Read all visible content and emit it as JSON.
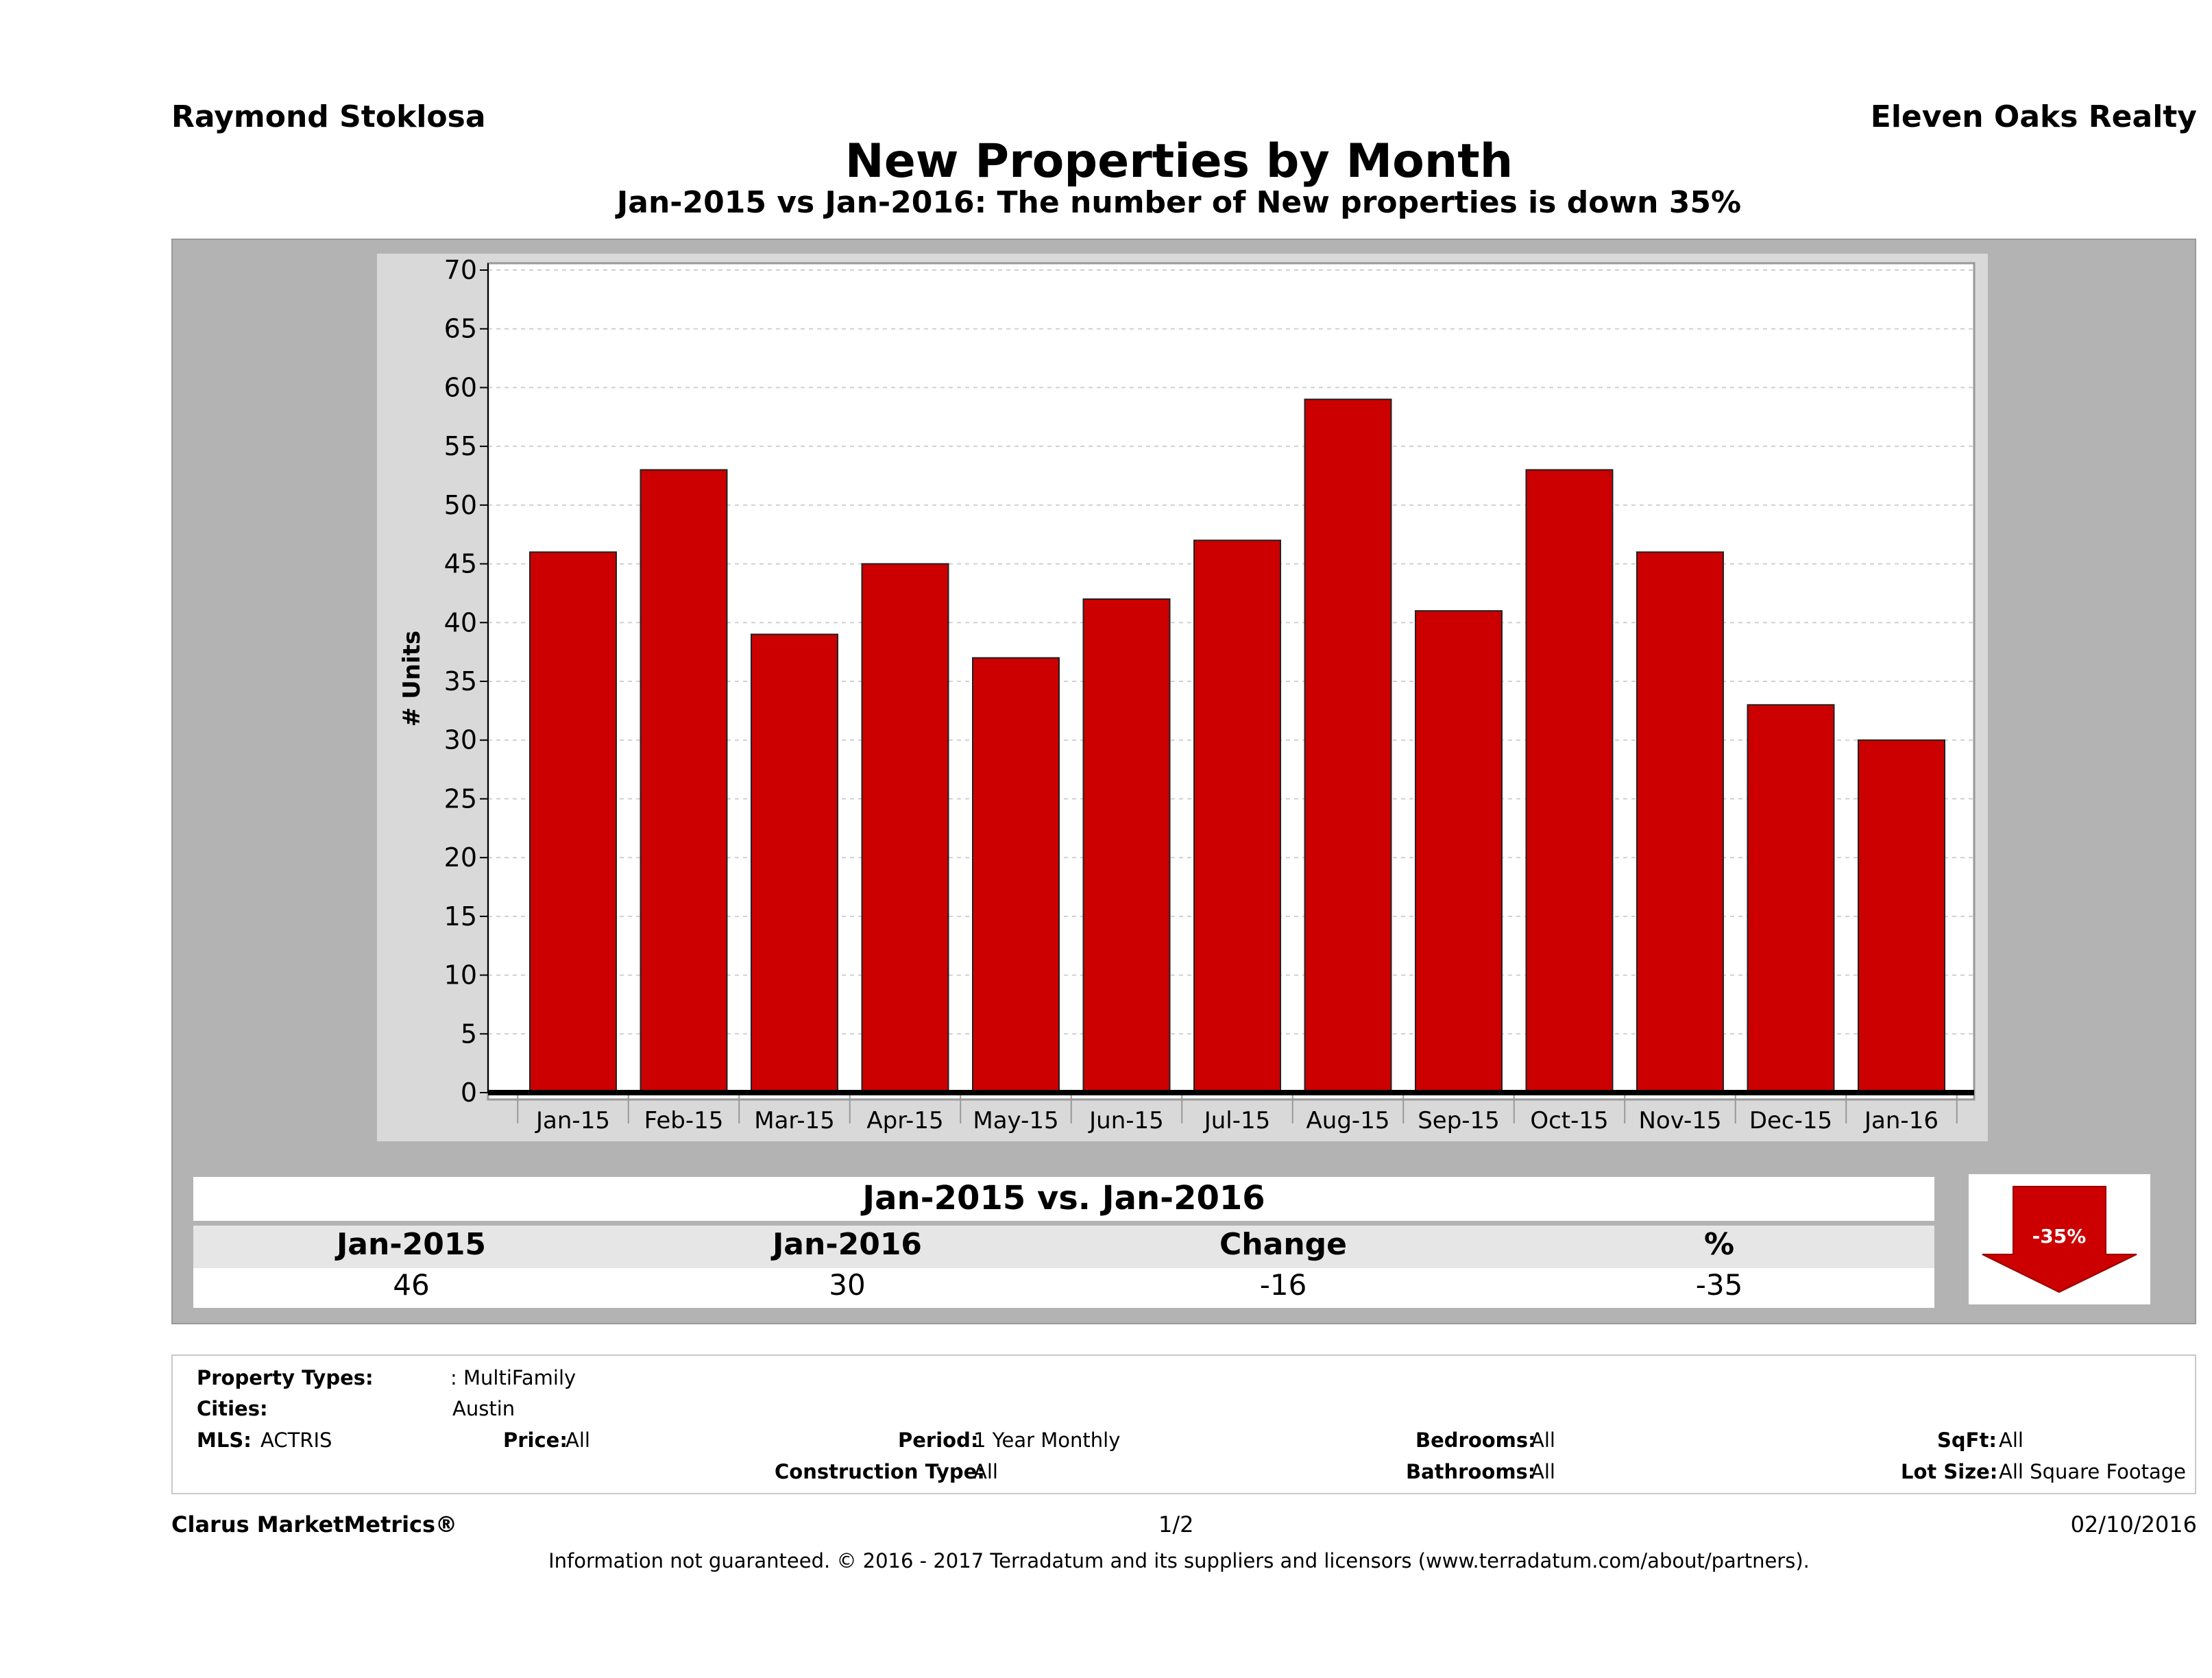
{
  "header": {
    "agent": "Raymond Stoklosa",
    "brokerage": "Eleven Oaks Realty",
    "title": "New Properties by Month",
    "subtitle": "Jan-2015 vs Jan-2016: The number of New  properties is down 35%"
  },
  "chart_data": {
    "type": "bar",
    "title": "New Properties by Month",
    "ylabel": "# Units",
    "xlabel": "",
    "ylim": [
      0,
      70
    ],
    "yticks": [
      0,
      5,
      10,
      15,
      20,
      25,
      30,
      35,
      40,
      45,
      50,
      55,
      60,
      65,
      70
    ],
    "categories": [
      "Jan-15",
      "Feb-15",
      "Mar-15",
      "Apr-15",
      "May-15",
      "Jun-15",
      "Jul-15",
      "Aug-15",
      "Sep-15",
      "Oct-15",
      "Nov-15",
      "Dec-15",
      "Jan-16"
    ],
    "values": [
      46,
      53,
      39,
      45,
      37,
      42,
      47,
      59,
      41,
      53,
      46,
      33,
      30
    ],
    "bar_color": "#cc0000",
    "grid": true
  },
  "summary": {
    "title": "Jan-2015 vs. Jan-2016",
    "headers": [
      "Jan-2015",
      "Jan-2016",
      "Change",
      "%"
    ],
    "values": [
      "46",
      "30",
      "-16",
      "-35"
    ],
    "badge": "-35%"
  },
  "filters": {
    "property_types_label": "Property Types:",
    "property_types_value": ": MultiFamily",
    "cities_label": "Cities:",
    "cities_value": "Austin",
    "mls_label": "MLS:",
    "mls_value": "ACTRIS",
    "price_label": "Price:",
    "price_value": "All",
    "period_label": "Period:",
    "period_value": "1 Year Monthly",
    "construction_label": "Construction Type:",
    "construction_value": "All",
    "bedrooms_label": "Bedrooms:",
    "bedrooms_value": "All",
    "bathrooms_label": "Bathrooms:",
    "bathrooms_value": "All",
    "sqft_label": "SqFt:",
    "sqft_value": "All",
    "lotsize_label": "Lot Size:",
    "lotsize_value": "All Square Footage"
  },
  "footer": {
    "product": "Clarus MarketMetrics®",
    "page": "1/2",
    "date": "02/10/2016",
    "disclaimer": "Information not guaranteed. © 2016 - 2017 Terradatum and its suppliers and licensors (www.terradatum.com/about/partners)."
  },
  "colors": {
    "bar": "#cc0000",
    "panel": "#b3b3b3",
    "plot_outer": "#d9d9d9"
  }
}
